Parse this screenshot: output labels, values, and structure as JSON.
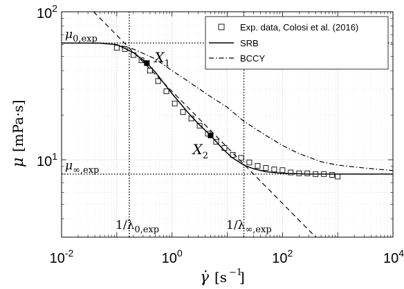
{
  "chart_data": {
    "type": "line",
    "x_scale": "log",
    "y_scale": "log",
    "xlim": [
      0.01,
      10000
    ],
    "ylim": [
      3,
      100
    ],
    "grid": true,
    "legend_position": "top-right",
    "xlabel": "γ̇ [s⁻¹]",
    "ylabel": "μ [mPa·s]",
    "x_ticks": [
      {
        "base": "10",
        "exp": "-2",
        "value": 0.01
      },
      {
        "base": "10",
        "exp": "0",
        "value": 1
      },
      {
        "base": "10",
        "exp": "2",
        "value": 100
      },
      {
        "base": "10",
        "exp": "4",
        "value": 10000
      }
    ],
    "y_ticks": [
      {
        "base": "10",
        "exp": "1",
        "value": 10
      },
      {
        "base": "10",
        "exp": "2",
        "value": 100
      }
    ],
    "series": [
      {
        "name": "Exp. data, Colosi et al. (2016)",
        "style": "markers",
        "marker": "open-square",
        "x": [
          0.1,
          0.14,
          0.2,
          0.28,
          0.4,
          0.56,
          0.79,
          1.12,
          1.58,
          2.24,
          3.16,
          4.47,
          6.3,
          8.9,
          12.6,
          17.8,
          25.1,
          35.5,
          50.1,
          70.8,
          100,
          141,
          200,
          282,
          398,
          562,
          794,
          1000
        ],
        "y": [
          57,
          56,
          51,
          47,
          40,
          34,
          29,
          24,
          21,
          19,
          17,
          15,
          13.2,
          12,
          10.8,
          10.3,
          9.6,
          9.1,
          8.8,
          8.6,
          8.5,
          8.2,
          8.1,
          8.1,
          8.0,
          8.0,
          7.9,
          7.7
        ]
      },
      {
        "name": "SRB",
        "style": "solid",
        "x": [
          0.01,
          0.02,
          0.05,
          0.1,
          0.2,
          0.35,
          0.5,
          1,
          2,
          3,
          5,
          8,
          12,
          20,
          30,
          50,
          100,
          300,
          1000,
          3000,
          10000
        ],
        "y": [
          61.5,
          61.5,
          61.4,
          60,
          53,
          45,
          39,
          28,
          20.6,
          17.5,
          14.6,
          12,
          10.4,
          9.2,
          8.7,
          8.3,
          8.1,
          8.0,
          8.0,
          8.0,
          8.0
        ]
      },
      {
        "name": "BCCY",
        "style": "dash-dot",
        "x": [
          0.01,
          0.05,
          0.1,
          0.2,
          0.5,
          1,
          2,
          5,
          10,
          20,
          50,
          100,
          200,
          500,
          1000,
          3000,
          10000
        ],
        "y": [
          61.5,
          61.3,
          60,
          56,
          48,
          40,
          33.7,
          26.7,
          22.6,
          18.2,
          14.6,
          12.5,
          11,
          9.7,
          9.2,
          8.8,
          8.45
        ]
      },
      {
        "style": "dashed",
        "x": [
          0.038,
          400
        ],
        "y": [
          100,
          3.0
        ]
      }
    ],
    "points": [
      {
        "label": "X",
        "sub": "1",
        "x": 0.35,
        "y": 45
      },
      {
        "label": "X",
        "sub": "2",
        "x": 5,
        "y": 14.6
      }
    ],
    "reference_lines": {
      "mu0": {
        "label": "μ",
        "sub": "0,exp",
        "y": 61.5
      },
      "muinf": {
        "label": "μ",
        "sub": "∞,exp",
        "y": 8.0
      },
      "lambda0": {
        "label": "1/λ",
        "sub": "0,exp",
        "x": 0.168
      },
      "lambdainf": {
        "label": "1/λ",
        "sub": "∞,exp",
        "x": 20
      }
    }
  }
}
